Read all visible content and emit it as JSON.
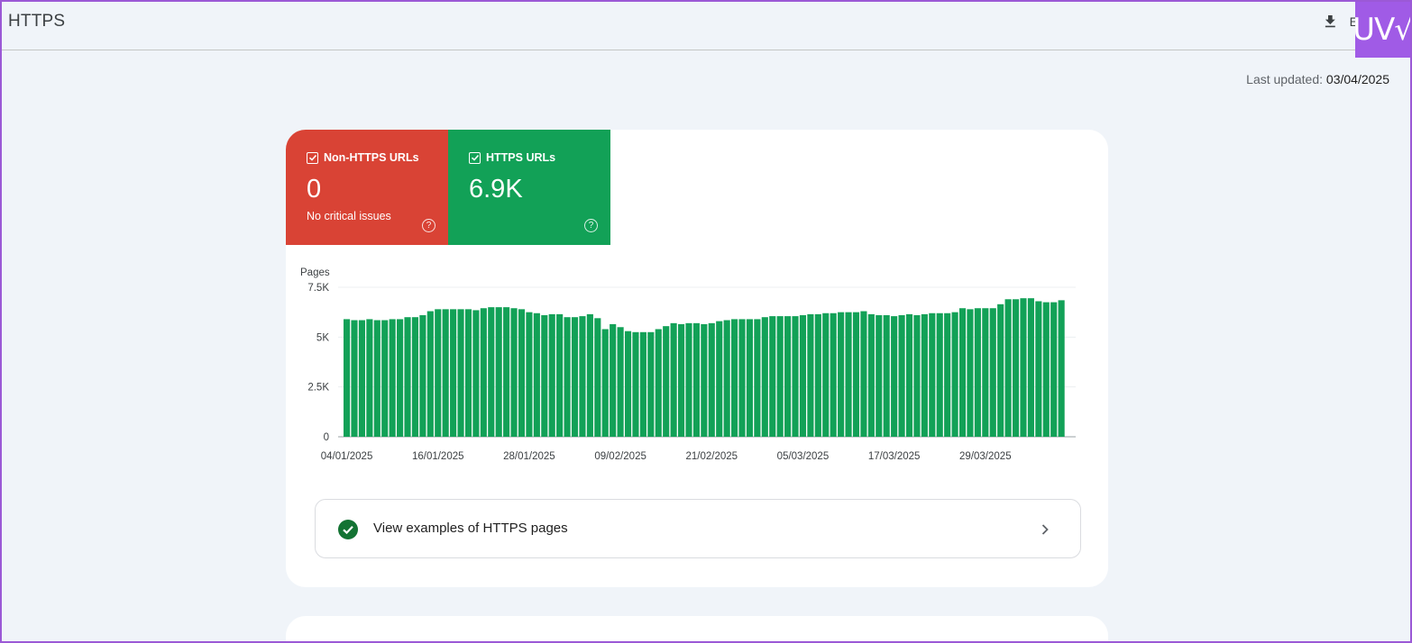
{
  "header": {
    "title": "HTTPS",
    "export_label": "E",
    "badge_text": "UV√"
  },
  "last_updated": {
    "label": "Last updated: ",
    "value": "03/04/2025"
  },
  "tiles": [
    {
      "label": "Non-HTTPS URLs",
      "value": "0",
      "sub": "No critical issues",
      "color": "#d94335",
      "checked": true
    },
    {
      "label": "HTTPS URLs",
      "value": "6.9K",
      "sub": "",
      "color": "#12a157",
      "checked": true
    }
  ],
  "chart_data": {
    "type": "bar",
    "ylabel": "Pages",
    "ylim": [
      0,
      7500
    ],
    "yticks": [
      0,
      2500,
      5000,
      7500
    ],
    "ytick_labels": [
      "0",
      "2.5K",
      "5K",
      "7.5K"
    ],
    "xtick_labels": [
      "04/01/2025",
      "16/01/2025",
      "28/01/2025",
      "09/02/2025",
      "21/02/2025",
      "05/03/2025",
      "17/03/2025",
      "29/03/2025"
    ],
    "xtick_every": 12,
    "bar_color": "#12a157",
    "grid": true,
    "series": [
      {
        "values": [
          5900,
          5850,
          5850,
          5900,
          5850,
          5850,
          5900,
          5900,
          6000,
          6000,
          6100,
          6300,
          6400,
          6400,
          6400,
          6400,
          6400,
          6350,
          6450,
          6500,
          6500,
          6500,
          6450,
          6400,
          6250,
          6200,
          6100,
          6150,
          6150,
          6000,
          6000,
          6050,
          6150,
          5950,
          5400,
          5650,
          5500,
          5300,
          5250,
          5250,
          5250,
          5400,
          5550,
          5700,
          5650,
          5700,
          5700,
          5650,
          5700,
          5800,
          5850,
          5900,
          5900,
          5900,
          5900,
          6000,
          6050,
          6050,
          6050,
          6050,
          6100,
          6150,
          6150,
          6200,
          6200,
          6250,
          6250,
          6250,
          6300,
          6150,
          6100,
          6100,
          6050,
          6100,
          6150,
          6100,
          6150,
          6200,
          6200,
          6200,
          6250,
          6450,
          6400,
          6450,
          6450,
          6450,
          6650,
          6900,
          6900,
          6950,
          6950,
          6800,
          6750,
          6750,
          6850
        ]
      }
    ]
  },
  "examples": {
    "label": "View examples of HTTPS pages"
  }
}
